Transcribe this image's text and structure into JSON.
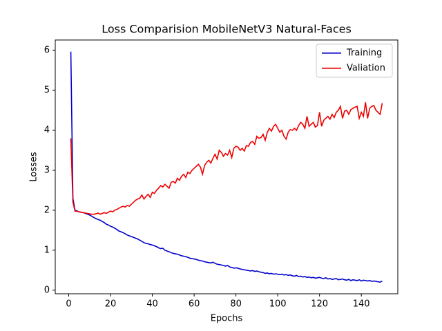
{
  "chart_data": {
    "type": "line",
    "title": "Loss Comparision MobileNetV3 Natural-Faces",
    "x_label": "Epochs",
    "y_label": "Losses",
    "x": [
      1,
      2,
      3,
      4,
      5,
      6,
      7,
      8,
      9,
      10,
      11,
      12,
      13,
      14,
      15,
      16,
      17,
      18,
      19,
      20,
      21,
      22,
      23,
      24,
      25,
      26,
      27,
      28,
      29,
      30,
      31,
      32,
      33,
      34,
      35,
      36,
      37,
      38,
      39,
      40,
      41,
      42,
      43,
      44,
      45,
      46,
      47,
      48,
      49,
      50,
      51,
      52,
      53,
      54,
      55,
      56,
      57,
      58,
      59,
      60,
      61,
      62,
      63,
      64,
      65,
      66,
      67,
      68,
      69,
      70,
      71,
      72,
      73,
      74,
      75,
      76,
      77,
      78,
      79,
      80,
      81,
      82,
      83,
      84,
      85,
      86,
      87,
      88,
      89,
      90,
      91,
      92,
      93,
      94,
      95,
      96,
      97,
      98,
      99,
      100,
      101,
      102,
      103,
      104,
      105,
      106,
      107,
      108,
      109,
      110,
      111,
      112,
      113,
      114,
      115,
      116,
      117,
      118,
      119,
      120,
      121,
      122,
      123,
      124,
      125,
      126,
      127,
      128,
      129,
      130,
      131,
      132,
      133,
      134,
      135,
      136,
      137,
      138,
      139,
      140,
      141,
      142,
      143,
      144,
      145,
      146,
      147,
      148,
      149,
      150
    ],
    "series": [
      {
        "name": "Training",
        "color": "#0000cc",
        "values": [
          5.97,
          2.3,
          2.0,
          1.98,
          1.96,
          1.95,
          1.94,
          1.92,
          1.9,
          1.88,
          1.85,
          1.82,
          1.79,
          1.77,
          1.75,
          1.72,
          1.69,
          1.65,
          1.63,
          1.6,
          1.58,
          1.55,
          1.52,
          1.48,
          1.46,
          1.44,
          1.41,
          1.38,
          1.36,
          1.34,
          1.32,
          1.3,
          1.28,
          1.25,
          1.22,
          1.19,
          1.17,
          1.16,
          1.14,
          1.13,
          1.11,
          1.09,
          1.06,
          1.04,
          1.05,
          1.0,
          0.98,
          0.96,
          0.94,
          0.92,
          0.91,
          0.9,
          0.88,
          0.86,
          0.85,
          0.84,
          0.82,
          0.8,
          0.79,
          0.78,
          0.77,
          0.75,
          0.74,
          0.73,
          0.71,
          0.7,
          0.69,
          0.68,
          0.7,
          0.67,
          0.65,
          0.64,
          0.63,
          0.62,
          0.6,
          0.62,
          0.58,
          0.57,
          0.55,
          0.56,
          0.55,
          0.53,
          0.52,
          0.51,
          0.5,
          0.49,
          0.48,
          0.49,
          0.47,
          0.48,
          0.46,
          0.45,
          0.44,
          0.42,
          0.43,
          0.41,
          0.42,
          0.4,
          0.41,
          0.4,
          0.39,
          0.4,
          0.38,
          0.39,
          0.37,
          0.38,
          0.36,
          0.35,
          0.37,
          0.34,
          0.35,
          0.33,
          0.34,
          0.32,
          0.33,
          0.31,
          0.32,
          0.3,
          0.31,
          0.32,
          0.3,
          0.29,
          0.31,
          0.28,
          0.29,
          0.27,
          0.28,
          0.29,
          0.26,
          0.27,
          0.28,
          0.26,
          0.25,
          0.27,
          0.24,
          0.26,
          0.25,
          0.24,
          0.26,
          0.23,
          0.25,
          0.24,
          0.23,
          0.24,
          0.22,
          0.23,
          0.22,
          0.21,
          0.2,
          0.23
        ]
      },
      {
        "name": "Valiation",
        "color": "#ee0000",
        "values": [
          3.8,
          2.2,
          1.98,
          1.97,
          1.96,
          1.95,
          1.94,
          1.93,
          1.92,
          1.91,
          1.9,
          1.9,
          1.91,
          1.93,
          1.9,
          1.92,
          1.94,
          1.92,
          1.95,
          1.98,
          1.96,
          2.0,
          2.02,
          2.05,
          2.08,
          2.1,
          2.08,
          2.12,
          2.1,
          2.15,
          2.2,
          2.25,
          2.28,
          2.3,
          2.38,
          2.28,
          2.35,
          2.4,
          2.32,
          2.45,
          2.42,
          2.5,
          2.55,
          2.62,
          2.58,
          2.65,
          2.6,
          2.55,
          2.7,
          2.72,
          2.68,
          2.8,
          2.75,
          2.85,
          2.9,
          2.82,
          2.95,
          2.92,
          3.0,
          3.05,
          3.1,
          3.15,
          3.08,
          2.9,
          3.12,
          3.2,
          3.25,
          3.18,
          3.3,
          3.4,
          3.28,
          3.5,
          3.45,
          3.35,
          3.42,
          3.38,
          3.5,
          3.32,
          3.55,
          3.6,
          3.58,
          3.5,
          3.55,
          3.48,
          3.62,
          3.6,
          3.7,
          3.72,
          3.65,
          3.85,
          3.8,
          3.82,
          3.9,
          3.75,
          3.95,
          4.05,
          3.98,
          4.1,
          4.15,
          4.05,
          3.95,
          4.0,
          3.85,
          3.78,
          3.95,
          4.02,
          4.0,
          4.05,
          4.0,
          4.12,
          4.2,
          4.15,
          4.05,
          4.35,
          4.1,
          4.15,
          4.2,
          4.08,
          4.12,
          4.45,
          4.1,
          4.25,
          4.3,
          4.35,
          4.28,
          4.4,
          4.32,
          4.45,
          4.5,
          4.6,
          4.3,
          4.48,
          4.5,
          4.4,
          4.52,
          4.55,
          4.58,
          4.6,
          4.3,
          4.45,
          4.35,
          4.7,
          4.3,
          4.55,
          4.6,
          4.62,
          4.5,
          4.45,
          4.4,
          4.68
        ]
      }
    ],
    "xlim": [
      -6.45,
      157.45
    ],
    "ylim": [
      -0.09,
      6.26
    ],
    "xticks": [
      0,
      20,
      40,
      60,
      80,
      100,
      120,
      140
    ],
    "yticks": [
      0,
      1,
      2,
      3,
      4,
      5,
      6
    ],
    "legend": "upper right"
  }
}
